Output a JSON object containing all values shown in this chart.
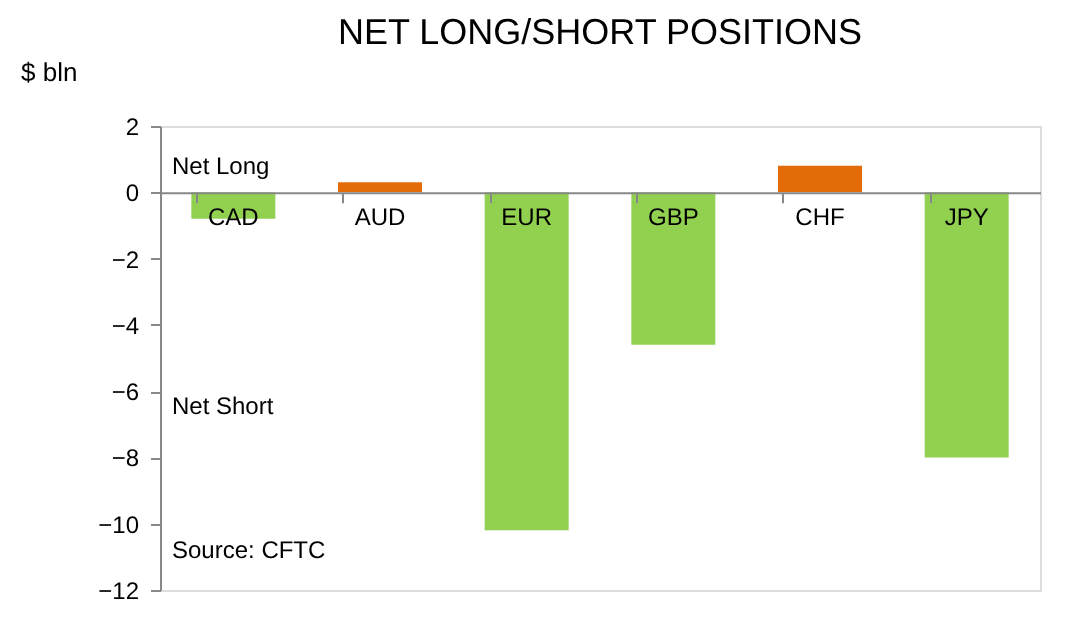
{
  "chart_data": {
    "type": "bar",
    "title": "NET LONG/SHORT POSITIONS",
    "ylabel": "$ bln",
    "categories": [
      "CAD",
      "AUD",
      "EUR",
      "GBP",
      "CHF",
      "JPY"
    ],
    "values": [
      -0.8,
      0.3,
      -10.2,
      -4.6,
      0.8,
      -8.0
    ],
    "colors": [
      "#92d050",
      "#e36c09",
      "#92d050",
      "#92d050",
      "#e36c09",
      "#92d050"
    ],
    "ylim": [
      -12,
      2
    ],
    "yticks": [
      -12,
      -10,
      -8,
      -6,
      -4,
      -2,
      0,
      2
    ],
    "grid": false,
    "annotations": [
      "Net Long",
      "Net Short",
      "Source: CFTC"
    ]
  }
}
